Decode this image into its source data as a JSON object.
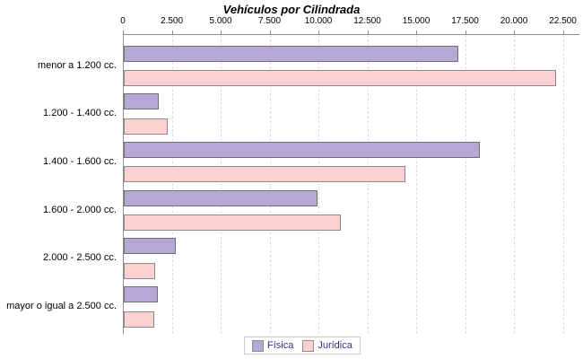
{
  "chart_data": {
    "type": "bar",
    "orientation": "horizontal",
    "title": "Vehículos por Cilindrada",
    "categories": [
      "menor a 1.200 cc.",
      "1.200 - 1.400 cc.",
      "1.400 - 1.600 cc.",
      "1.600 - 2.000 cc.",
      "2.000 - 2.500 cc.",
      "mayor o igual a 2.500 cc."
    ],
    "series": [
      {
        "name": "Física",
        "color": "#b5a8d5",
        "border_color": "#6f6f6f",
        "values": [
          17000,
          1700,
          18100,
          9800,
          2550,
          1650
        ]
      },
      {
        "name": "Jurídica",
        "color": "#fdd0d1",
        "border_color": "#8a8a8a",
        "values": [
          22000,
          2150,
          14300,
          11000,
          1500,
          1450
        ]
      }
    ],
    "x_axis": {
      "position": "top",
      "min": 0,
      "max": 22500,
      "tick_interval": 2500,
      "tick_labels": [
        "0",
        "2.500",
        "5.000",
        "7.500",
        "10.000",
        "12.500",
        "15.000",
        "17.500",
        "20.000",
        "22.500"
      ]
    },
    "grid": "vertical-dashed",
    "legend_position": "bottom",
    "colors": {
      "axis_line": "#8f8f8f",
      "gridline": "#dcdcdc",
      "legend_text": "#3b2f7f",
      "title_text": "#000000"
    }
  }
}
